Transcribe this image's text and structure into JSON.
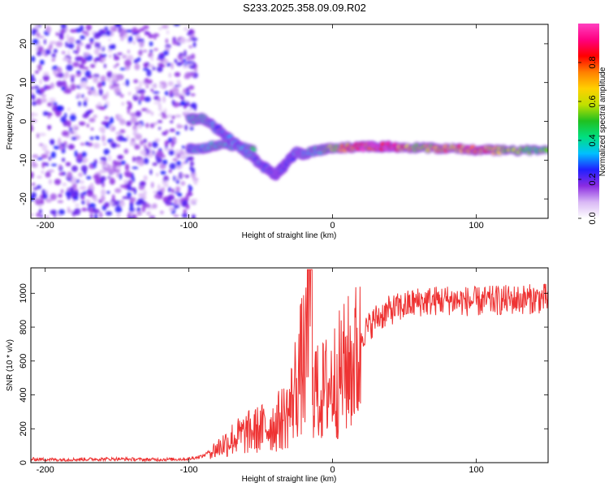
{
  "page_title": "S233.2025.358.09.09.R02",
  "chart_data": [
    {
      "type": "heatmap",
      "title": "S233.2025.358.09.09.R02",
      "xlabel": "Height of straight line (km)",
      "ylabel": "Frequency (Hz)",
      "xlim": [
        -210,
        150
      ],
      "ylim": [
        -25,
        25
      ],
      "xticks": [
        -200,
        -100,
        0,
        100
      ],
      "yticks": [
        20,
        10,
        0,
        -10,
        -20
      ],
      "colorbar": {
        "label": "Normalized spectral amplitude",
        "range": [
          0,
          1
        ],
        "ticks": [
          "0.0",
          "0.2",
          "0.4",
          "0.6",
          "0.8"
        ],
        "colors": [
          "#ffffff",
          "#d9b8f5",
          "#8a2be2",
          "#2020ff",
          "#00c0ff",
          "#00e080",
          "#20c020",
          "#c0e000",
          "#ffd000",
          "#ff8000",
          "#ff0000",
          "#ff0080",
          "#ff40c0"
        ]
      },
      "noise_region": {
        "x_range": [
          -210,
          -95
        ],
        "y_range": [
          -25,
          25
        ],
        "amplitude": [
          0.05,
          0.25
        ]
      },
      "signal_track": [
        {
          "x": -100,
          "y": 0.5,
          "amp": 0.35
        },
        {
          "x": -90,
          "y": 0.8,
          "amp": 0.4
        },
        {
          "x": -80,
          "y": -2,
          "amp": 0.3
        },
        {
          "x": -70,
          "y": -5,
          "amp": 0.3
        },
        {
          "x": -60,
          "y": -8,
          "amp": 0.35
        },
        {
          "x": -50,
          "y": -11,
          "amp": 0.3
        },
        {
          "x": -40,
          "y": -14,
          "amp": 0.25
        },
        {
          "x": -35,
          "y": -12,
          "amp": 0.25
        },
        {
          "x": -25,
          "y": -8,
          "amp": 0.3
        },
        {
          "x": -20,
          "y": -8.5,
          "amp": 0.35
        },
        {
          "x": -10,
          "y": -7.5,
          "amp": 0.4
        },
        {
          "x": 0,
          "y": -7,
          "amp": 0.55
        },
        {
          "x": 20,
          "y": -6.5,
          "amp": 0.9
        },
        {
          "x": 40,
          "y": -6.5,
          "amp": 0.95
        },
        {
          "x": 60,
          "y": -6.8,
          "amp": 0.6
        },
        {
          "x": 80,
          "y": -7,
          "amp": 0.7
        },
        {
          "x": 100,
          "y": -7.3,
          "amp": 0.85
        },
        {
          "x": 120,
          "y": -7.5,
          "amp": 0.55
        },
        {
          "x": 150,
          "y": -7.5,
          "amp": 0.5
        }
      ],
      "secondary_track": [
        {
          "x": -100,
          "y": -7,
          "amp": 0.3
        },
        {
          "x": -90,
          "y": -7,
          "amp": 0.35
        },
        {
          "x": -80,
          "y": -6,
          "amp": 0.4
        },
        {
          "x": -65,
          "y": -6.5,
          "amp": 0.35
        },
        {
          "x": -55,
          "y": -7.5,
          "amp": 0.45
        }
      ]
    },
    {
      "type": "line",
      "xlabel": "Height of straight line (km)",
      "ylabel": "SNR (10 * v/v)",
      "xlim": [
        -210,
        150
      ],
      "ylim": [
        0,
        1150
      ],
      "xticks": [
        -200,
        -100,
        0,
        100
      ],
      "yticks": [
        0,
        200,
        400,
        600,
        800,
        1000
      ],
      "color": "#ee3333",
      "series": [
        {
          "name": "SNR",
          "x": [
            -210,
            -190,
            -170,
            -150,
            -130,
            -110,
            -100,
            -90,
            -80,
            -70,
            -60,
            -50,
            -40,
            -30,
            -25,
            -20,
            -15,
            -10,
            0,
            10,
            20,
            30,
            40,
            60,
            80,
            100,
            120,
            150
          ],
          "values": [
            20,
            18,
            20,
            22,
            18,
            20,
            22,
            40,
            100,
            160,
            200,
            230,
            260,
            350,
            550,
            700,
            650,
            450,
            550,
            650,
            750,
            850,
            900,
            950,
            960,
            950,
            960,
            970
          ]
        }
      ]
    }
  ]
}
